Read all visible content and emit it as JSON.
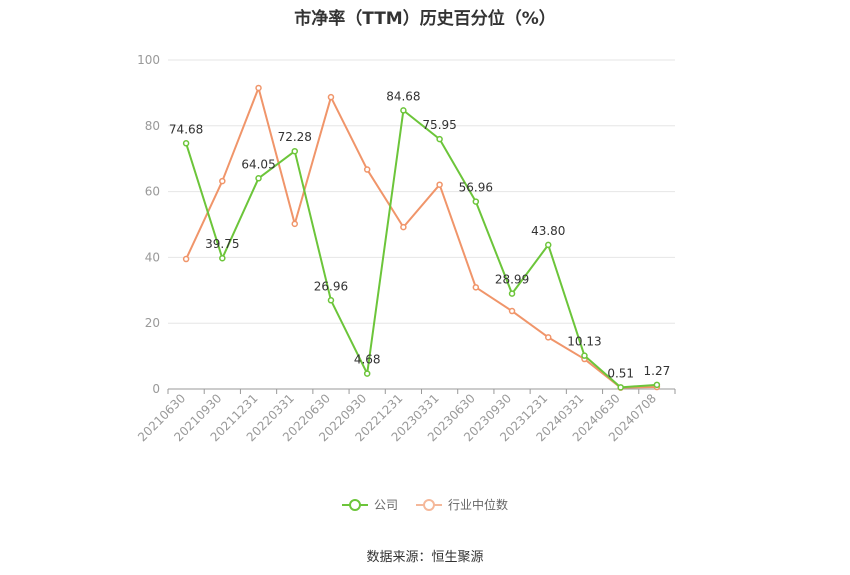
{
  "chart_data": {
    "type": "line",
    "title": "市净率（TTM）历史百分位（%）",
    "xlabel": "",
    "ylabel": "",
    "ylim": [
      0,
      100
    ],
    "yticks": [
      0,
      20,
      40,
      60,
      80,
      100
    ],
    "categories": [
      "20210630",
      "20210930",
      "20211231",
      "20220331",
      "20220630",
      "20220930",
      "20221231",
      "20230331",
      "20230630",
      "20230930",
      "20231231",
      "20240331",
      "20240630",
      "20240708"
    ],
    "series": [
      {
        "name": "公司",
        "color": "#6cc53a",
        "values": [
          74.68,
          39.75,
          64.05,
          72.28,
          26.96,
          4.68,
          84.68,
          75.95,
          56.96,
          28.99,
          43.8,
          10.13,
          0.51,
          1.27
        ],
        "labels": [
          "74.68",
          "39.75",
          "64.05",
          "72.28",
          "26.96",
          "4.68",
          "84.68",
          "75.95",
          "56.96",
          "28.99",
          "43.80",
          "10.13",
          "0.51",
          "1.27"
        ]
      },
      {
        "name": "行业中位数",
        "color": "#f0956a",
        "values": [
          39.5,
          63.2,
          91.5,
          50.2,
          88.7,
          66.7,
          49.2,
          62.1,
          30.9,
          23.7,
          15.7,
          9.1,
          0.4,
          0.6
        ]
      }
    ],
    "grid": true,
    "legend": "bottom"
  },
  "source": "数据来源：恒生聚源"
}
